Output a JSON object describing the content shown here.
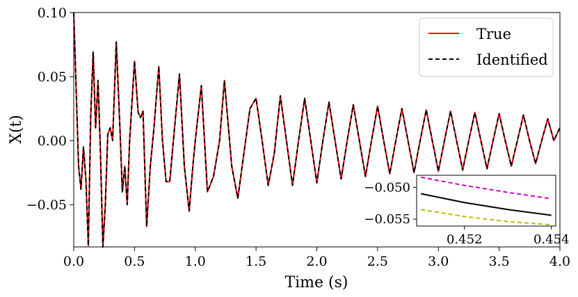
{
  "chart_data": {
    "type": "line",
    "title": "",
    "xlabel": "Time (s)",
    "ylabel": "X(t)",
    "xlim": [
      0.0,
      4.0
    ],
    "ylim": [
      -0.083,
      0.1
    ],
    "xticks": [
      0.0,
      0.5,
      1.0,
      1.5,
      2.0,
      2.5,
      3.0,
      3.5,
      4.0
    ],
    "xtick_labels": [
      "0.0",
      "0.5",
      "1.0",
      "1.5",
      "2.0",
      "2.5",
      "3.0",
      "3.5",
      "4.0"
    ],
    "yticks": [
      -0.05,
      0.0,
      0.05,
      0.1
    ],
    "ytick_labels": [
      "−0.05",
      "0.00",
      "0.05",
      "0.10"
    ],
    "grid": false,
    "legend": {
      "location": "top-right",
      "entries": [
        "True",
        "Identified"
      ]
    },
    "series": [
      {
        "name": "True",
        "color": "#ff0000",
        "style": "solid",
        "points": [
          [
            0.0,
            0.1
          ],
          [
            0.02,
            0.04
          ],
          [
            0.04,
            -0.02
          ],
          [
            0.06,
            -0.038
          ],
          [
            0.08,
            -0.005
          ],
          [
            0.1,
            -0.03
          ],
          [
            0.12,
            -0.082
          ],
          [
            0.14,
            0.02
          ],
          [
            0.16,
            0.069
          ],
          [
            0.18,
            0.01
          ],
          [
            0.2,
            0.047
          ],
          [
            0.22,
            -0.01
          ],
          [
            0.24,
            -0.083
          ],
          [
            0.26,
            -0.05
          ],
          [
            0.28,
            0.005
          ],
          [
            0.3,
            0.01
          ],
          [
            0.32,
            0.0
          ],
          [
            0.35,
            0.077
          ],
          [
            0.38,
            0.01
          ],
          [
            0.4,
            -0.04
          ],
          [
            0.42,
            -0.02
          ],
          [
            0.44,
            -0.05
          ],
          [
            0.46,
            0.0
          ],
          [
            0.5,
            0.062
          ],
          [
            0.53,
            0.022
          ],
          [
            0.55,
            0.018
          ],
          [
            0.57,
            0.023
          ],
          [
            0.6,
            -0.067
          ],
          [
            0.63,
            -0.02
          ],
          [
            0.66,
            0.01
          ],
          [
            0.7,
            0.058
          ],
          [
            0.73,
            0.0
          ],
          [
            0.76,
            -0.032
          ],
          [
            0.79,
            -0.032
          ],
          [
            0.82,
            0.0
          ],
          [
            0.87,
            0.052
          ],
          [
            0.91,
            -0.02
          ],
          [
            0.95,
            -0.055
          ],
          [
            0.98,
            -0.02
          ],
          [
            1.0,
            0.0
          ],
          [
            1.05,
            0.043
          ],
          [
            1.1,
            -0.04
          ],
          [
            1.15,
            -0.028
          ],
          [
            1.2,
            0.0
          ],
          [
            1.24,
            0.047
          ],
          [
            1.3,
            -0.02
          ],
          [
            1.35,
            -0.045
          ],
          [
            1.4,
            -0.01
          ],
          [
            1.45,
            0.025
          ],
          [
            1.5,
            0.033
          ],
          [
            1.55,
            0.0
          ],
          [
            1.6,
            -0.035
          ],
          [
            1.65,
            -0.01
          ],
          [
            1.7,
            0.035
          ],
          [
            1.75,
            0.0
          ],
          [
            1.8,
            -0.035
          ],
          [
            1.85,
            0.0
          ],
          [
            1.9,
            0.033
          ],
          [
            1.95,
            0.0
          ],
          [
            2.0,
            -0.033
          ],
          [
            2.05,
            0.0
          ],
          [
            2.1,
            0.03
          ],
          [
            2.15,
            0.0
          ],
          [
            2.2,
            -0.03
          ],
          [
            2.25,
            0.0
          ],
          [
            2.3,
            0.028
          ],
          [
            2.35,
            0.0
          ],
          [
            2.4,
            -0.028
          ],
          [
            2.45,
            0.0
          ],
          [
            2.5,
            0.027
          ],
          [
            2.55,
            0.0
          ],
          [
            2.6,
            -0.026
          ],
          [
            2.65,
            0.0
          ],
          [
            2.7,
            0.025
          ],
          [
            2.75,
            0.0
          ],
          [
            2.8,
            -0.025
          ],
          [
            2.85,
            0.0
          ],
          [
            2.9,
            0.024
          ],
          [
            2.95,
            0.0
          ],
          [
            3.0,
            -0.024
          ],
          [
            3.05,
            0.0
          ],
          [
            3.1,
            0.023
          ],
          [
            3.15,
            0.0
          ],
          [
            3.2,
            -0.023
          ],
          [
            3.25,
            0.0
          ],
          [
            3.3,
            0.022
          ],
          [
            3.35,
            0.0
          ],
          [
            3.4,
            -0.022
          ],
          [
            3.45,
            0.0
          ],
          [
            3.5,
            0.021
          ],
          [
            3.55,
            0.0
          ],
          [
            3.6,
            -0.02
          ],
          [
            3.65,
            0.0
          ],
          [
            3.7,
            0.02
          ],
          [
            3.75,
            0.0
          ],
          [
            3.8,
            -0.018
          ],
          [
            3.85,
            0.0
          ],
          [
            3.9,
            0.017
          ],
          [
            3.95,
            0.0
          ],
          [
            4.0,
            0.01
          ]
        ]
      },
      {
        "name": "Identified",
        "color": "#000000",
        "style": "dashed",
        "same_as": "True"
      }
    ],
    "inset": {
      "xlim": [
        0.4509,
        0.4541
      ],
      "ylim": [
        -0.0561,
        -0.0481
      ],
      "xticks": [
        0.452,
        0.454
      ],
      "xtick_labels": [
        "0.452",
        "0.454"
      ],
      "yticks": [
        -0.05,
        -0.055
      ],
      "ytick_labels": [
        "−0.050",
        "−0.055"
      ],
      "series": [
        {
          "name": "upper-bound",
          "color": "#cc00cc",
          "style": "dashed",
          "points": [
            [
              0.451,
              -0.0484
            ],
            [
              0.452,
              -0.0497
            ],
            [
              0.453,
              -0.0508
            ],
            [
              0.454,
              -0.0518
            ]
          ]
        },
        {
          "name": "mean",
          "color": "#000000",
          "style": "solid",
          "points": [
            [
              0.451,
              -0.051
            ],
            [
              0.452,
              -0.0524
            ],
            [
              0.453,
              -0.0535
            ],
            [
              0.454,
              -0.0544
            ]
          ]
        },
        {
          "name": "lower-bound",
          "color": "#bbbb00",
          "style": "dashed",
          "points": [
            [
              0.451,
              -0.0535
            ],
            [
              0.452,
              -0.0546
            ],
            [
              0.453,
              -0.0554
            ],
            [
              0.454,
              -0.0559
            ]
          ]
        }
      ]
    }
  }
}
